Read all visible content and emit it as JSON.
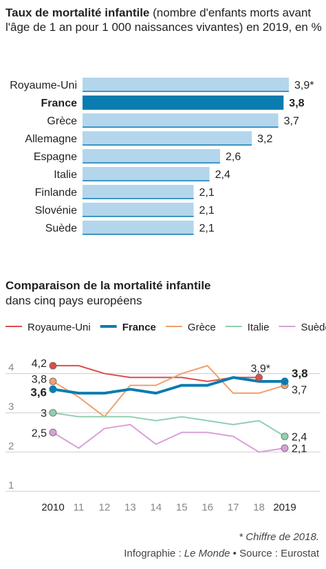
{
  "header": {
    "title_bold": "Taux de mortalité infantile",
    "title_rest": "(nombre d'enfants morts avant l'âge de 1 an pour 1 000 naissances vivantes) en 2019, en %"
  },
  "chart_data": [
    {
      "type": "bar",
      "orientation": "horizontal",
      "title": "Taux de mortalité infantile (nombre d'enfants morts avant l'âge de 1 an pour 1 000 naissances vivantes) en 2019, en %",
      "categories": [
        "Royaume-Uni",
        "France",
        "Grèce",
        "Allemagne",
        "Espagne",
        "Italie",
        "Finlande",
        "Slovénie",
        "Suède"
      ],
      "values": [
        3.9,
        3.8,
        3.7,
        3.2,
        2.6,
        2.4,
        2.1,
        2.1,
        2.1
      ],
      "value_labels": [
        "3,9*",
        "3,8",
        "3,7",
        "3,2",
        "2,6",
        "2,4",
        "2,1",
        "2,1",
        "2,1"
      ],
      "highlight": "France",
      "colors": {
        "bar": "#b3d6ec",
        "bar_highlight": "#0a7cb0",
        "baseline": "#0a7cb0"
      }
    },
    {
      "type": "line",
      "title": "Comparaison de la mortalité infantile",
      "subtitle": "dans cinq pays européens",
      "x": [
        2010,
        2011,
        2012,
        2013,
        2014,
        2015,
        2016,
        2017,
        2018,
        2019
      ],
      "x_tick_labels": [
        "2010",
        "11",
        "12",
        "13",
        "14",
        "15",
        "16",
        "17",
        "18",
        "2019"
      ],
      "y_ticks": [
        1,
        2,
        3,
        4
      ],
      "y_tick_labels": [
        "1",
        "2",
        "3",
        "4"
      ],
      "ylim": [
        1,
        4.5
      ],
      "grid": "horizontal",
      "legend_position": "top",
      "series": [
        {
          "name": "Royaume-Uni",
          "color": "#d94f4a",
          "width": 2,
          "values": [
            4.2,
            4.2,
            4.0,
            3.9,
            3.9,
            3.9,
            3.8,
            3.9,
            3.9,
            null
          ],
          "start_label": "4,2",
          "end_label": "3,9*",
          "end_index": 8
        },
        {
          "name": "France",
          "color": "#0a7cb0",
          "width": 4,
          "bold": true,
          "values": [
            3.6,
            3.5,
            3.5,
            3.6,
            3.5,
            3.7,
            3.7,
            3.9,
            3.8,
            3.8
          ],
          "start_label": "3,6",
          "end_label": "3,8",
          "end_index": 9
        },
        {
          "name": "Grèce",
          "color": "#f0a070",
          "width": 2,
          "values": [
            3.8,
            3.4,
            2.9,
            3.7,
            3.7,
            4.0,
            4.2,
            3.5,
            3.5,
            3.7
          ],
          "start_label": "3,8",
          "end_label": "3,7",
          "end_index": 9
        },
        {
          "name": "Italie",
          "color": "#8fd0b0",
          "width": 2,
          "values": [
            3.0,
            2.9,
            2.9,
            2.9,
            2.8,
            2.9,
            2.8,
            2.7,
            2.8,
            2.4
          ],
          "start_label": "3",
          "end_label": "2,4",
          "end_index": 9
        },
        {
          "name": "Suède",
          "color": "#d9a0d8",
          "width": 2,
          "values": [
            2.5,
            2.1,
            2.6,
            2.7,
            2.2,
            2.5,
            2.5,
            2.4,
            2.0,
            2.1
          ],
          "start_label": "2,5",
          "end_label": "2,1",
          "end_index": 9
        }
      ]
    }
  ],
  "footnote": "* Chiffre de 2018.",
  "credits": {
    "prefix": "Infographie : ",
    "publisher": "Le Monde",
    "separator": " • ",
    "source": "Source : Eurostat"
  }
}
